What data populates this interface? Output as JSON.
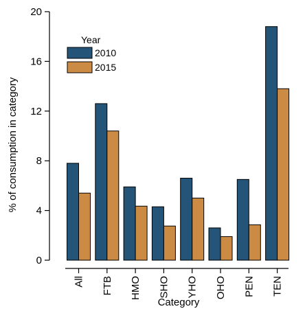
{
  "chart_data": {
    "type": "bar",
    "xlabel": "Category",
    "ylabel": "% of consumption in category",
    "ylim": [
      0,
      20
    ],
    "yticks": [
      0,
      4,
      8,
      12,
      16,
      20
    ],
    "categories": [
      "All",
      "FTB",
      "HMO",
      "SHO",
      "YHO",
      "OHO",
      "PEN",
      "TEN"
    ],
    "legend": {
      "title": "Year",
      "placement": "top-left"
    },
    "grid": false,
    "series": [
      {
        "name": "2010",
        "color": "#245477",
        "values": [
          7.8,
          12.6,
          5.9,
          4.3,
          6.6,
          2.6,
          6.5,
          18.8
        ]
      },
      {
        "name": "2015",
        "color": "#CC8B45",
        "values": [
          5.4,
          10.4,
          4.35,
          2.75,
          5.0,
          1.9,
          2.85,
          13.8
        ]
      }
    ]
  }
}
